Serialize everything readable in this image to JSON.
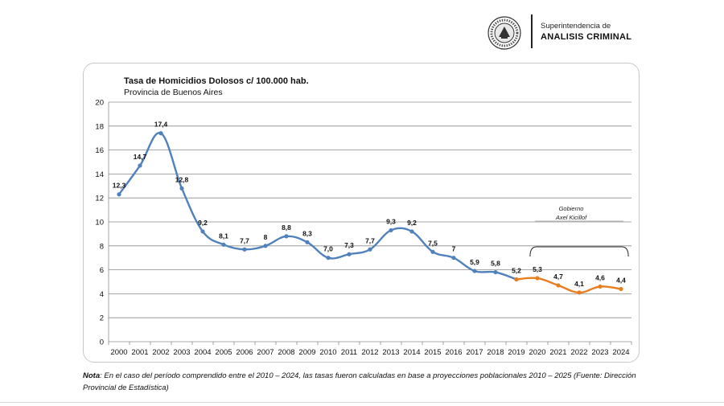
{
  "header": {
    "org_line1": "Superintendencia de",
    "org_line2": "ANALISIS CRIMINAL"
  },
  "chart_data": {
    "type": "line",
    "title": "Tasa de Homicidios Dolosos c/ 100.000 hab.",
    "subtitle": "Provincia de Buenos Aires",
    "xlabel": "",
    "ylabel": "",
    "categories": [
      "2000",
      "2001",
      "2002",
      "2003",
      "2004",
      "2005",
      "2006",
      "2007",
      "2008",
      "2009",
      "2010",
      "2011",
      "2012",
      "2013",
      "2014",
      "2015",
      "2016",
      "2017",
      "2018",
      "2019",
      "2020",
      "2021",
      "2022",
      "2023",
      "2024"
    ],
    "yticks": [
      "0",
      "2",
      "4",
      "6",
      "8",
      "10",
      "12",
      "14",
      "16",
      "18",
      "20"
    ],
    "ylim": [
      0,
      20
    ],
    "grid": true,
    "series": [
      {
        "color": "#4f81bd",
        "points": [
          {
            "x": "2000",
            "y": 12.3,
            "label": "12,3"
          },
          {
            "x": "2001",
            "y": 14.7,
            "label": "14,7"
          },
          {
            "x": "2002",
            "y": 17.4,
            "label": "17,4"
          },
          {
            "x": "2003",
            "y": 12.8,
            "label": "12,8"
          },
          {
            "x": "2004",
            "y": 9.2,
            "label": "9,2"
          },
          {
            "x": "2005",
            "y": 8.1,
            "label": "8,1"
          },
          {
            "x": "2006",
            "y": 7.7,
            "label": "7,7"
          },
          {
            "x": "2007",
            "y": 8.0,
            "label": "8"
          },
          {
            "x": "2008",
            "y": 8.8,
            "label": "8,8"
          },
          {
            "x": "2009",
            "y": 8.3,
            "label": "8,3"
          },
          {
            "x": "2010",
            "y": 7.0,
            "label": "7,0"
          },
          {
            "x": "2011",
            "y": 7.3,
            "label": "7,3"
          },
          {
            "x": "2012",
            "y": 7.7,
            "label": "7,7"
          },
          {
            "x": "2013",
            "y": 9.3,
            "label": "9,3"
          },
          {
            "x": "2014",
            "y": 9.2,
            "label": "9,2"
          },
          {
            "x": "2015",
            "y": 7.5,
            "label": "7,5"
          },
          {
            "x": "2016",
            "y": 7.0,
            "label": "7"
          },
          {
            "x": "2017",
            "y": 5.9,
            "label": "5,9"
          },
          {
            "x": "2018",
            "y": 5.8,
            "label": "5,8"
          },
          {
            "x": "2019",
            "y": 5.2,
            "label": "5,2"
          }
        ]
      },
      {
        "color": "#e87d1e",
        "points": [
          {
            "x": "2019",
            "y": 5.2,
            "label": ""
          },
          {
            "x": "2020",
            "y": 5.3,
            "label": "5,3"
          },
          {
            "x": "2021",
            "y": 4.7,
            "label": "4,7"
          },
          {
            "x": "2022",
            "y": 4.1,
            "label": "4,1"
          },
          {
            "x": "2023",
            "y": 4.6,
            "label": "4,6"
          },
          {
            "x": "2024",
            "y": 4.4,
            "label": "4,4"
          }
        ]
      }
    ],
    "annotation": {
      "line1": "Gobierno",
      "line2": "Axel Kicillof",
      "from": "2020",
      "to": "2024"
    }
  },
  "note": {
    "label": "Nota",
    "text": ": En el caso del período comprendido entre el 2010 – 2024, las tasas fueron calculadas en base a proyecciones poblacionales 2010 – 2025 (Fuente: Dirección Provincial de Estadística)"
  }
}
